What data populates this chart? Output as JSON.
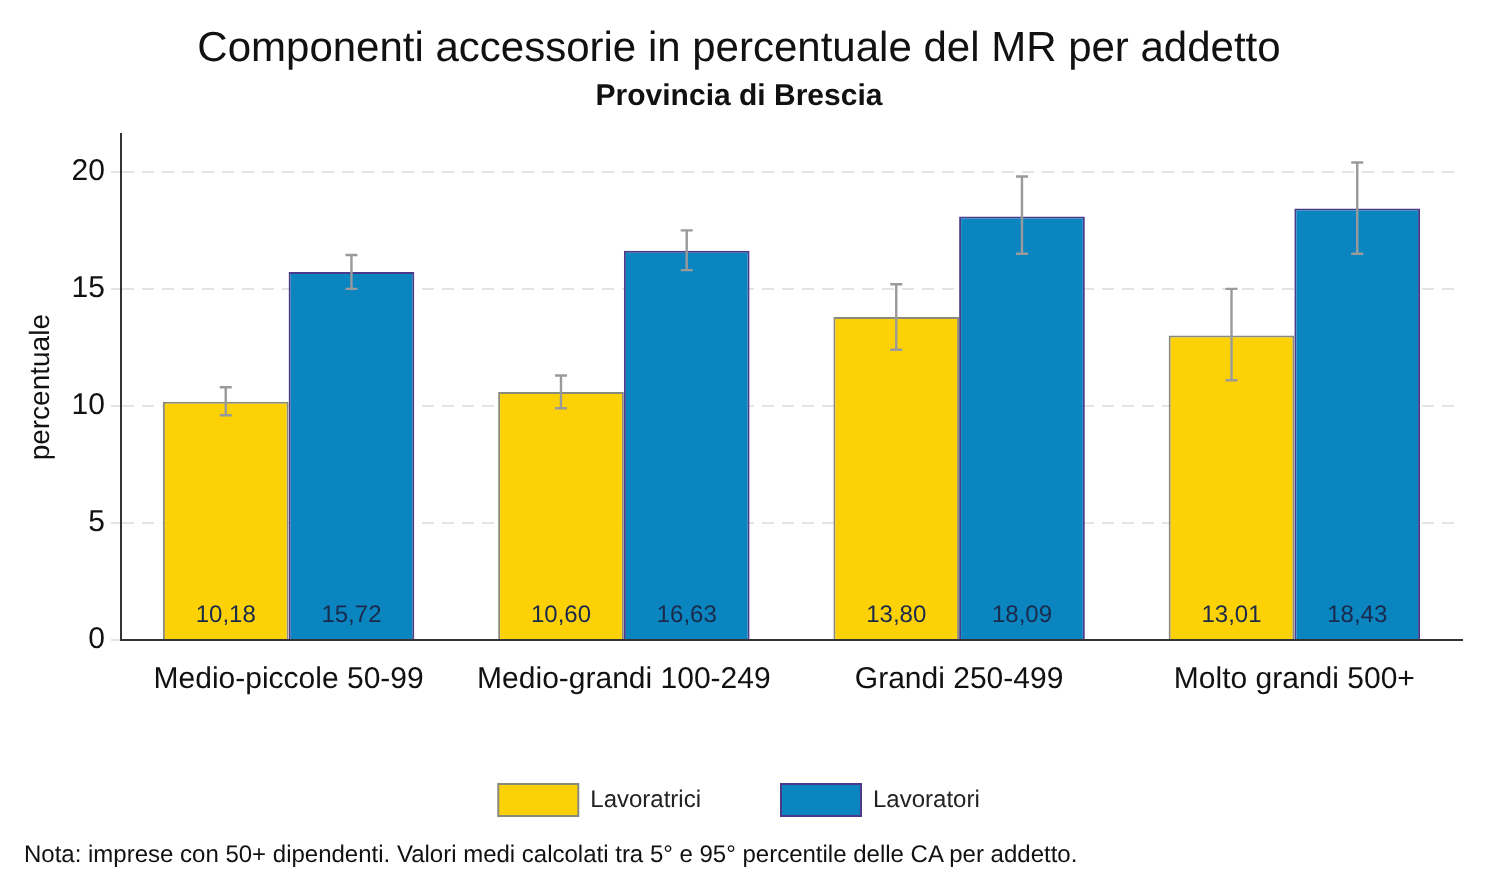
{
  "chart_data": {
    "type": "bar",
    "title": "Componenti accessorie in percentuale del MR per addetto",
    "subtitle": "Provincia di Brescia",
    "ylabel": "percentuale",
    "categories": [
      "Medio-piccole 50-99",
      "Medio-grandi 100-249",
      "Grandi 250-499",
      "Molto grandi 500+"
    ],
    "series": [
      {
        "name": "Lavoratrici",
        "color": "#fcd106",
        "values": [
          10.18,
          10.6,
          13.8,
          13.01
        ],
        "value_labels": [
          "10,18",
          "10,60",
          "13,80",
          "13,01"
        ],
        "errors": [
          [
            9.6,
            10.8
          ],
          [
            9.9,
            11.3
          ],
          [
            12.4,
            15.2
          ],
          [
            11.1,
            15.0
          ]
        ]
      },
      {
        "name": "Lavoratori",
        "color": "#0a85c0",
        "values": [
          15.72,
          16.63,
          18.09,
          18.43
        ],
        "value_labels": [
          "15,72",
          "16,63",
          "18,09",
          "18,43"
        ],
        "errors": [
          [
            15.0,
            16.45
          ],
          [
            15.8,
            17.5
          ],
          [
            16.5,
            19.8
          ],
          [
            16.5,
            20.4
          ]
        ]
      }
    ],
    "ylim": [
      0,
      21.6
    ],
    "yticks": [
      0,
      5,
      10,
      15,
      20
    ],
    "grid": "y",
    "legend": "bottom",
    "annotations": [
      "Nota: imprese con 50+ dipendenti. Valori medi calcolati tra 5° e 95° percentile delle CA per addetto."
    ]
  }
}
